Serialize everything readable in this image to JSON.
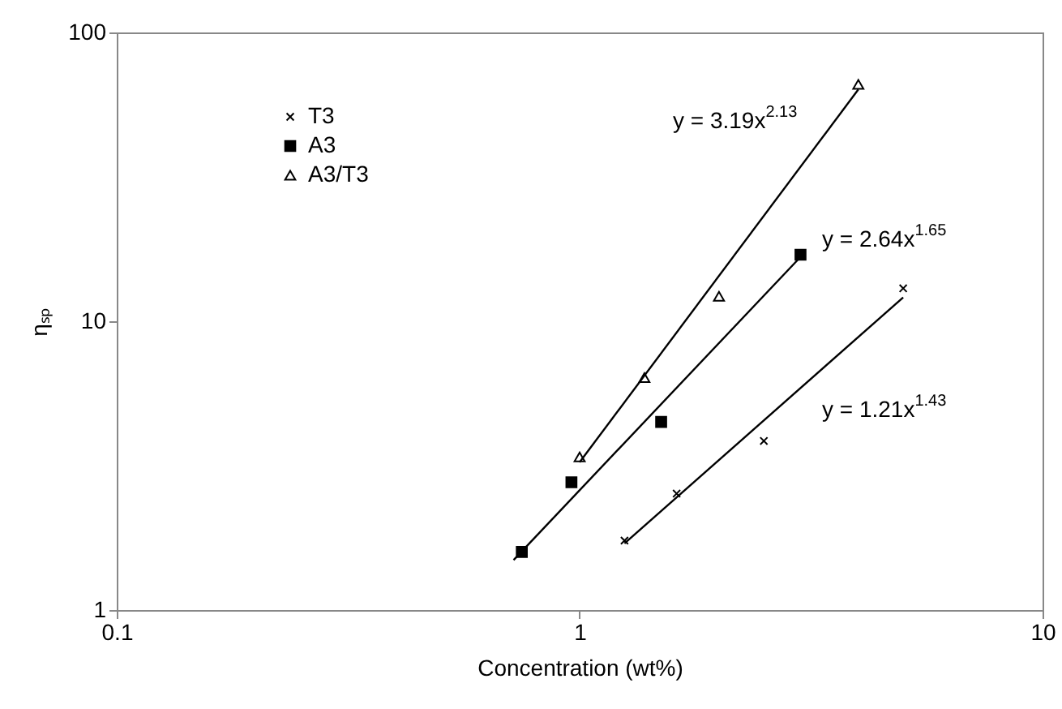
{
  "chart_data": {
    "type": "scatter",
    "xlabel": "Concentration (wt%)",
    "ylabel": "ηₛₚ",
    "log": "xy",
    "xlim": [
      0.1,
      10
    ],
    "xticks": [
      0.1,
      1,
      10
    ],
    "ylim": [
      1,
      100
    ],
    "yticks": [
      1,
      10,
      100
    ],
    "grid": false,
    "legend": "top left",
    "series": [
      {
        "name": "T3",
        "color": "#000000",
        "marker": "cross",
        "x": [
          1.25,
          1.62,
          2.5,
          5.0
        ],
        "values": [
          1.74,
          2.53,
          3.85,
          13.0
        ]
      },
      {
        "name": "A3",
        "color": "#000000",
        "marker": "square",
        "x": [
          0.75,
          0.96,
          1.5,
          3.0
        ],
        "values": [
          1.59,
          2.77,
          4.48,
          17.0
        ]
      },
      {
        "name": "A3/T3",
        "color": "#000000",
        "marker": "triangle",
        "x": [
          1.0,
          1.38,
          2.0,
          4.0
        ],
        "values": [
          3.39,
          6.38,
          12.2,
          66.1
        ]
      },
      {
        "type": "line",
        "color": "#000000",
        "x": [
          1.25,
          5.0
        ],
        "values": [
          1.7,
          12.1
        ]
      },
      {
        "type": "line",
        "color": "#000000",
        "x": [
          0.72,
          3.0
        ],
        "values": [
          1.49,
          16.7
        ]
      },
      {
        "type": "line",
        "color": "#000000",
        "x": [
          1.0,
          4.0
        ],
        "values": [
          3.25,
          63.5
        ]
      }
    ],
    "annotations": [
      "y = 3.19x$^{2.13}$",
      "y = 2.64x$^{1.65}$",
      "y = 1.21x$^{1.43}$"
    ]
  }
}
